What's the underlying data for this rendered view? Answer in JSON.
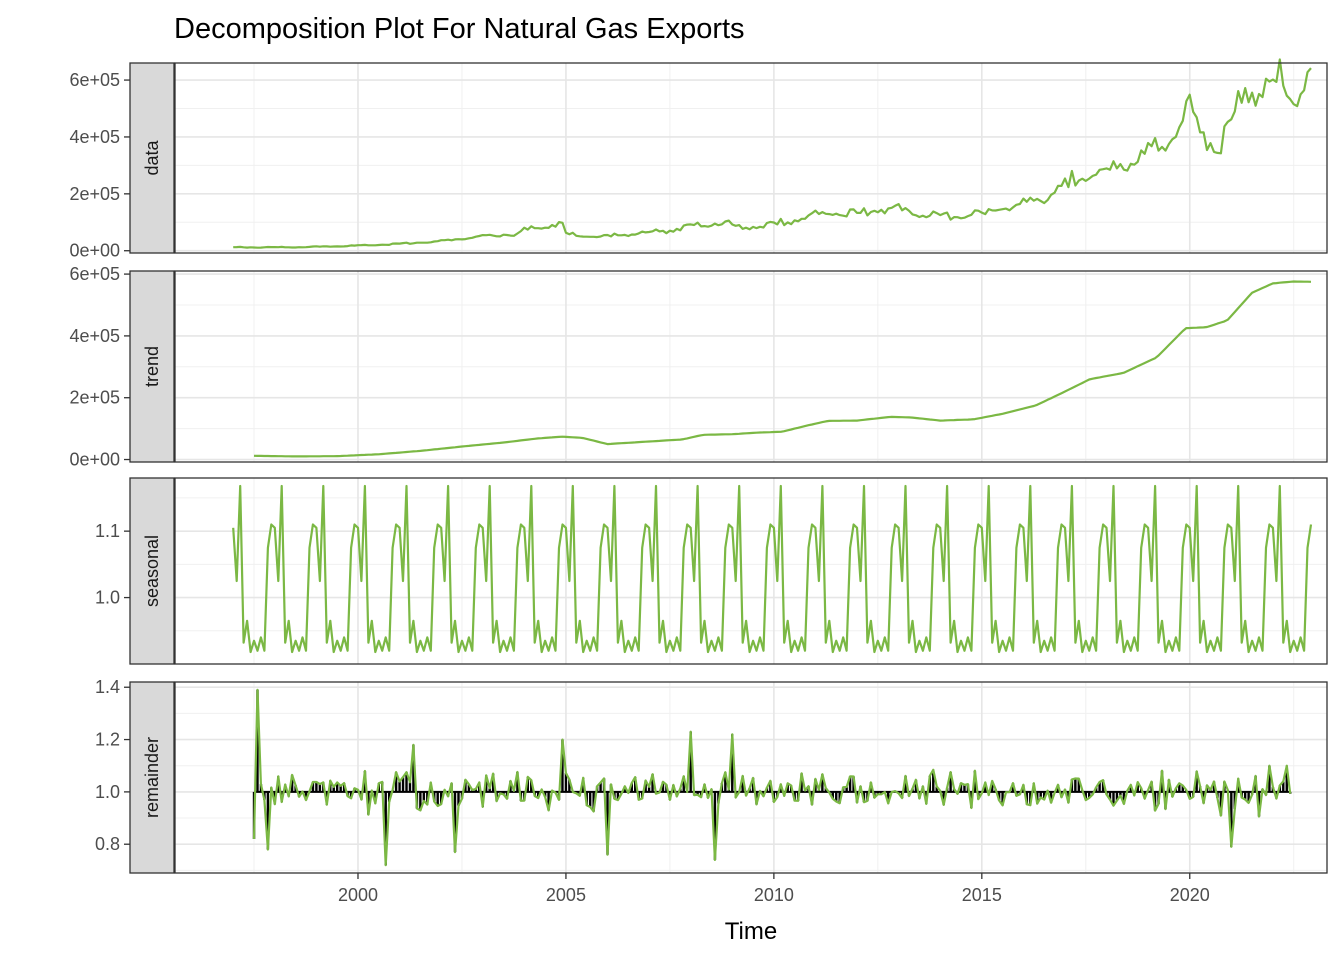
{
  "chart_data": {
    "type": "line",
    "title": "Decomposition Plot For Natural Gas Exports",
    "xlabel": "Time",
    "xlim": [
      1995.6,
      2023.3
    ],
    "x_ticks": [
      2000,
      2005,
      2010,
      2015,
      2020
    ],
    "x_tick_labels": [
      "2000",
      "2005",
      "2010",
      "2015",
      "2020"
    ],
    "x_start": 1997.0,
    "x_step": 0.08333,
    "line_color": "#7bb844",
    "remainder_baseline": 1.0,
    "grid": true,
    "panels": [
      {
        "strip": "data",
        "ylim": [
          -8000,
          660000
        ],
        "y_ticks": [
          0,
          200000,
          400000,
          600000
        ],
        "y_tick_labels": [
          "0e+00",
          "2e+05",
          "4e+05",
          "6e+05"
        ],
        "anchors": [
          [
            1997.0,
            12000
          ],
          [
            1998.5,
            12000
          ],
          [
            2000.0,
            18000
          ],
          [
            2001.0,
            24000
          ],
          [
            2002.0,
            34000
          ],
          [
            2003.0,
            50000
          ],
          [
            2003.9,
            60000
          ],
          [
            2004.0,
            74000
          ],
          [
            2004.6,
            88000
          ],
          [
            2004.9,
            96000
          ],
          [
            2005.0,
            60000
          ],
          [
            2005.7,
            48000
          ],
          [
            2006.5,
            57000
          ],
          [
            2007.5,
            70000
          ],
          [
            2008.2,
            92000
          ],
          [
            2008.8,
            100000
          ],
          [
            2009.2,
            80000
          ],
          [
            2009.9,
            92000
          ],
          [
            2010.4,
            102000
          ],
          [
            2011.0,
            130000
          ],
          [
            2012.0,
            132000
          ],
          [
            2012.9,
            150000
          ],
          [
            2013.6,
            128000
          ],
          [
            2014.4,
            120000
          ],
          [
            2015.0,
            132000
          ],
          [
            2016.0,
            165000
          ],
          [
            2016.6,
            190000
          ],
          [
            2017.2,
            245000
          ],
          [
            2018.0,
            280000
          ],
          [
            2018.9,
            330000
          ],
          [
            2019.5,
            400000
          ],
          [
            2020.0,
            490000
          ],
          [
            2020.4,
            390000
          ],
          [
            2020.7,
            360000
          ],
          [
            2021.3,
            560000
          ],
          [
            2021.8,
            570000
          ],
          [
            2022.1,
            590000
          ],
          [
            2022.6,
            550000
          ],
          [
            2022.9,
            585000
          ]
        ],
        "noise_amp": [
          0.12,
          0.06
        ],
        "noise_seed": 7
      },
      {
        "strip": "trend",
        "ylim": [
          -8000,
          610000
        ],
        "y_ticks": [
          0,
          200000,
          400000,
          600000
        ],
        "y_tick_labels": [
          "0e+00",
          "2e+05",
          "4e+05",
          "6e+05"
        ],
        "anchors": [
          [
            1997.5,
            12000
          ],
          [
            1998.5,
            10000
          ],
          [
            1999.5,
            11000
          ],
          [
            2000.5,
            17000
          ],
          [
            2001.5,
            28000
          ],
          [
            2002.5,
            42000
          ],
          [
            2003.5,
            55000
          ],
          [
            2004.3,
            68000
          ],
          [
            2004.9,
            74000
          ],
          [
            2005.4,
            70000
          ],
          [
            2006.0,
            50000
          ],
          [
            2006.6,
            55000
          ],
          [
            2007.2,
            60000
          ],
          [
            2007.8,
            65000
          ],
          [
            2008.3,
            80000
          ],
          [
            2009.0,
            82000
          ],
          [
            2009.6,
            87000
          ],
          [
            2010.2,
            90000
          ],
          [
            2010.8,
            110000
          ],
          [
            2011.3,
            125000
          ],
          [
            2012.0,
            126000
          ],
          [
            2012.8,
            138000
          ],
          [
            2013.3,
            136000
          ],
          [
            2014.0,
            126000
          ],
          [
            2014.8,
            130000
          ],
          [
            2015.5,
            148000
          ],
          [
            2016.3,
            175000
          ],
          [
            2017.0,
            220000
          ],
          [
            2017.6,
            260000
          ],
          [
            2018.4,
            280000
          ],
          [
            2019.2,
            330000
          ],
          [
            2019.9,
            425000
          ],
          [
            2020.4,
            428000
          ],
          [
            2020.9,
            450000
          ],
          [
            2021.5,
            540000
          ],
          [
            2022.0,
            570000
          ],
          [
            2022.5,
            576000
          ],
          [
            2022.93,
            575000
          ]
        ],
        "noise_amp": [
          0,
          0
        ],
        "noise_seed": 1
      },
      {
        "strip": "seasonal",
        "ylim": [
          0.9,
          1.18
        ],
        "y_ticks": [
          1.0,
          1.1
        ],
        "y_tick_labels": [
          "1.0",
          "1.1"
        ],
        "pattern": [
          1.105,
          1.025,
          1.168,
          0.932,
          0.965,
          0.918,
          0.935,
          0.92,
          0.94,
          0.92,
          1.075,
          1.11
        ],
        "start": 1997.0,
        "end": 2022.93
      },
      {
        "strip": "remainder",
        "ylim": [
          0.69,
          1.42
        ],
        "y_ticks": [
          0.8,
          1.0,
          1.2,
          1.4
        ],
        "y_tick_labels": [
          "0.8",
          "1.0",
          "1.2",
          "1.4"
        ],
        "start": 1997.5,
        "end": 2022.45,
        "spikes": [
          [
            1997.5,
            0.82
          ],
          [
            1997.58,
            1.39
          ],
          [
            1997.67,
            1.03
          ],
          [
            1997.85,
            0.78
          ],
          [
            2000.7,
            0.72
          ],
          [
            2001.3,
            1.18
          ],
          [
            2002.3,
            0.77
          ],
          [
            2004.9,
            1.2
          ],
          [
            2006.0,
            0.76
          ],
          [
            2008.0,
            1.23
          ],
          [
            2008.6,
            0.74
          ],
          [
            2009.0,
            1.22
          ],
          [
            2021.0,
            0.79
          ],
          [
            2021.9,
            1.1
          ],
          [
            2022.3,
            1.1
          ]
        ],
        "noise_amp": 0.07,
        "noise_seed": 13
      }
    ]
  }
}
